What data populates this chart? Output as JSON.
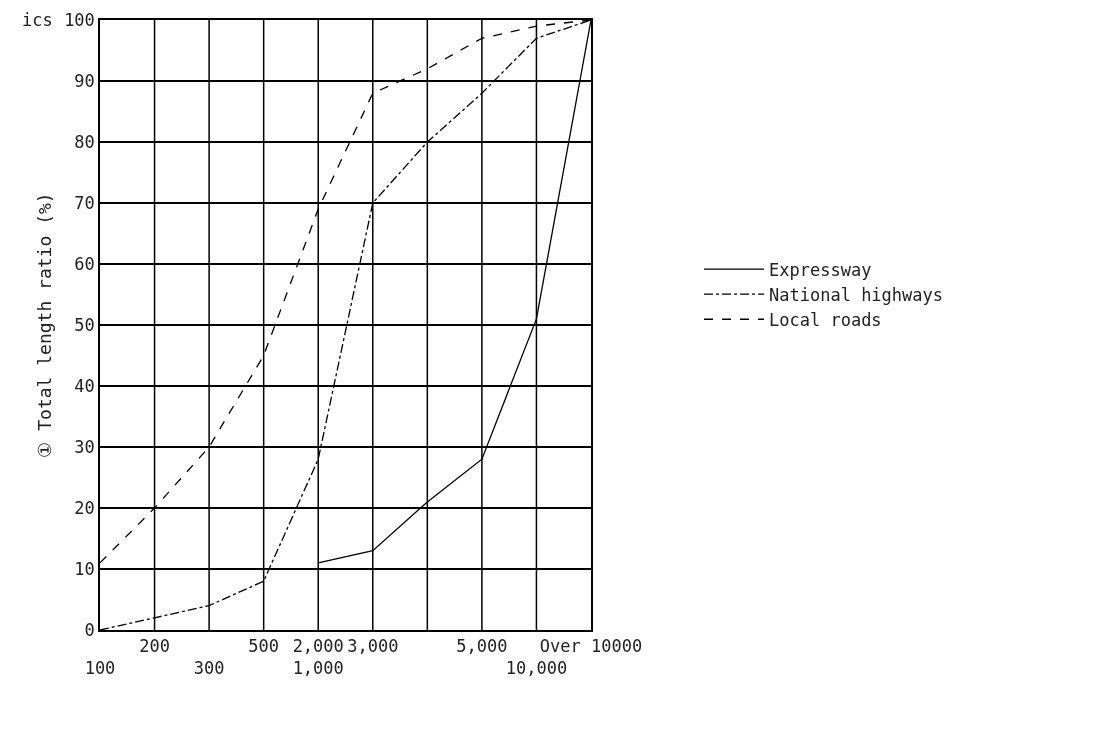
{
  "chart_data": {
    "type": "line",
    "ylabel": "① Total length ratio (%)",
    "annotations": [
      "ics"
    ],
    "categories": [
      "100",
      "200",
      "300",
      "500",
      "2,000\n1,000",
      "3,000",
      null,
      "5,000",
      "10,000",
      "Over 10000"
    ],
    "ylim": [
      0,
      100
    ],
    "yticks": [
      0,
      10,
      20,
      30,
      40,
      50,
      60,
      70,
      80,
      90,
      100
    ],
    "grid": true,
    "legend": "right",
    "marker": "none",
    "series": [
      {
        "name": "Expressway",
        "color": "#000000",
        "line_style": "solid",
        "values": [
          null,
          null,
          null,
          null,
          11,
          13,
          21,
          28,
          51,
          100
        ]
      },
      {
        "name": "National highways",
        "color": "#000000",
        "line_style": "dashdot",
        "values": [
          0,
          2,
          4,
          8,
          28,
          70,
          80,
          88,
          97,
          100
        ]
      },
      {
        "name": "Local roads",
        "color": "#000000",
        "line_style": "dashed",
        "values": [
          11,
          20,
          30,
          45,
          69,
          88,
          92,
          97,
          99,
          100
        ]
      }
    ]
  }
}
